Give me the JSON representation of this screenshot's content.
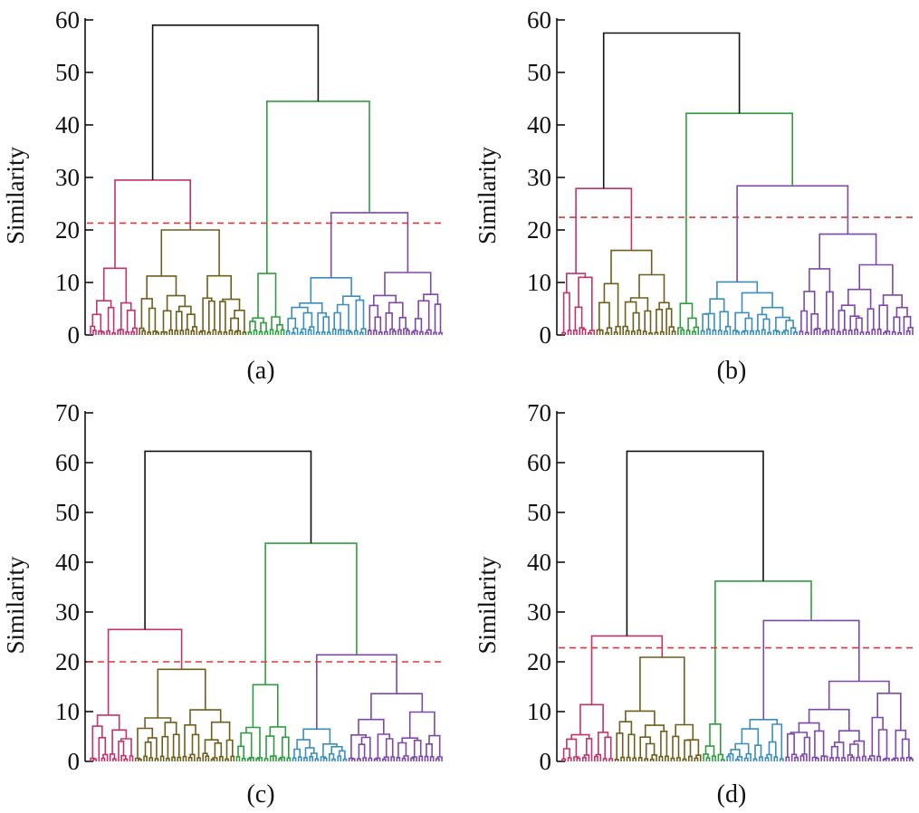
{
  "chart_data": [
    {
      "type": "dendrogram",
      "panel_label": "(a)",
      "ylabel": "Similarity",
      "ylim": [
        0,
        60
      ],
      "yticks": [
        0,
        10,
        20,
        30,
        40,
        50,
        60
      ],
      "cut_threshold": 21.3,
      "root_height": 59,
      "clusters": [
        {
          "name": "",
          "color": "#c2336b",
          "merge_height": 12.7,
          "sub_heights": [
            5.1,
            7.5,
            2.4,
            3.0,
            1.5,
            2.0,
            1.2
          ],
          "leaves": 18
        },
        {
          "name": "",
          "color": "#6e5f1c",
          "merge_height": 20.0,
          "sub_heights": [
            7.7,
            11.3,
            5.6,
            6.0,
            3.0,
            2.2,
            2.6
          ],
          "leaves": 40
        },
        {
          "name": "",
          "color": "#2f9d3f",
          "merge_height": 11.7,
          "sub_heights": [
            3.6,
            4.2,
            2.0,
            1.5
          ],
          "leaves": 14
        },
        {
          "name": "",
          "color": "#3b8ebc",
          "merge_height": 10.9,
          "sub_heights": [
            6.5,
            6.8,
            5.3,
            3.5,
            2.2,
            1.8
          ],
          "leaves": 30
        },
        {
          "name": "",
          "color": "#7d49a8",
          "merge_height": 11.9,
          "sub_heights": [
            7.4,
            6.0,
            4.0,
            3.4,
            2.1,
            1.6
          ],
          "leaves": 28
        }
      ],
      "upper_links": [
        {
          "children": [
            0,
            1
          ],
          "height": 29.5
        },
        {
          "children": [
            3,
            4
          ],
          "height": 23.3
        },
        {
          "children": [
            2,
            "34"
          ],
          "height": 44.5
        },
        {
          "children": [
            "01",
            "234"
          ],
          "height": 59
        }
      ]
    },
    {
      "type": "dendrogram",
      "panel_label": "(b)",
      "ylabel": "Similarity",
      "ylim": [
        0,
        60
      ],
      "yticks": [
        0,
        10,
        20,
        30,
        40,
        50,
        60
      ],
      "cut_threshold": 22.4,
      "root_height": 57.5,
      "clusters": [
        {
          "name": "",
          "color": "#c2336b",
          "merge_height": 11.7,
          "sub_heights": [
            10.5,
            5.5,
            3.7,
            2.0
          ],
          "leaves": 12
        },
        {
          "name": "",
          "color": "#6e5f1c",
          "merge_height": 16.1,
          "sub_heights": [
            11.0,
            6.8,
            6.0,
            4.5,
            3.2,
            2.5
          ],
          "leaves": 28
        },
        {
          "name": "",
          "color": "#2f9d3f",
          "merge_height": 6.0,
          "sub_heights": [
            4.2,
            2.0
          ],
          "leaves": 8
        },
        {
          "name": "",
          "color": "#3b8ebc",
          "merge_height": 10.1,
          "sub_heights": [
            8.7,
            5.0,
            4.0,
            3.5,
            2.5,
            1.7
          ],
          "leaves": 34
        },
        {
          "name": "",
          "color": "#7d49a8",
          "merge_height": 19.2,
          "sub_heights": [
            13.8,
            8.8,
            5.2,
            4.3,
            3.0,
            2.0
          ],
          "leaves": 40
        }
      ],
      "upper_links": [
        {
          "children": [
            0,
            1
          ],
          "height": 27.9
        },
        {
          "children": [
            3,
            4
          ],
          "height": 28.4
        },
        {
          "children": [
            2,
            "34"
          ],
          "height": 42.2
        },
        {
          "children": [
            "01",
            "234"
          ],
          "height": 57.5
        }
      ]
    },
    {
      "type": "dendrogram",
      "panel_label": "(c)",
      "ylabel": "Similarity",
      "ylim": [
        0,
        70
      ],
      "yticks": [
        0,
        10,
        20,
        30,
        40,
        50,
        60,
        70
      ],
      "cut_threshold": 20.0,
      "root_height": 62.3,
      "clusters": [
        {
          "name": "",
          "color": "#c2336b",
          "merge_height": 9.3,
          "sub_heights": [
            7.0,
            5.2,
            3.8,
            2.3,
            1.5
          ],
          "leaves": 16
        },
        {
          "name": "",
          "color": "#6e5f1c",
          "merge_height": 18.5,
          "sub_heights": [
            11.1,
            7.3,
            5.0,
            4.2,
            3.0,
            2.0
          ],
          "leaves": 36
        },
        {
          "name": "",
          "color": "#2f9d3f",
          "merge_height": 15.4,
          "sub_heights": [
            7.5,
            5.5,
            3.0,
            2.0
          ],
          "leaves": 20
        },
        {
          "name": "",
          "color": "#3b8ebc",
          "merge_height": 6.5,
          "sub_heights": [
            4.2,
            3.0,
            2.0,
            1.5
          ],
          "leaves": 20
        },
        {
          "name": "",
          "color": "#7d49a8",
          "merge_height": 13.6,
          "sub_heights": [
            10.4,
            5.6,
            4.5,
            3.2,
            2.2
          ],
          "leaves": 34
        }
      ],
      "upper_links": [
        {
          "children": [
            0,
            1
          ],
          "height": 26.5
        },
        {
          "children": [
            3,
            4
          ],
          "height": 21.4
        },
        {
          "children": [
            2,
            "34"
          ],
          "height": 43.8
        },
        {
          "children": [
            "01",
            "234"
          ],
          "height": 62.3
        }
      ]
    },
    {
      "type": "dendrogram",
      "panel_label": "(d)",
      "ylabel": "Similarity",
      "ylim": [
        0,
        70
      ],
      "yticks": [
        0,
        10,
        20,
        30,
        40,
        50,
        60,
        70
      ],
      "cut_threshold": 22.8,
      "root_height": 62.3,
      "clusters": [
        {
          "name": "",
          "color": "#c2336b",
          "merge_height": 11.4,
          "sub_heights": [
            5.7,
            5.9,
            3.2,
            2.2,
            1.6
          ],
          "leaves": 18
        },
        {
          "name": "",
          "color": "#6e5f1c",
          "merge_height": 20.9,
          "sub_heights": [
            9.8,
            8.7,
            5.5,
            4.0,
            3.0,
            2.0
          ],
          "leaves": 30
        },
        {
          "name": "",
          "color": "#2f9d3f",
          "merge_height": 7.5,
          "sub_heights": [
            3.8,
            2.0
          ],
          "leaves": 8
        },
        {
          "name": "",
          "color": "#3b8ebc",
          "merge_height": 8.4,
          "sub_heights": [
            7.0,
            4.3,
            3.0,
            2.0
          ],
          "leaves": 20
        },
        {
          "name": "",
          "color": "#7d49a8",
          "merge_height": 16.1,
          "sub_heights": [
            15.9,
            7.0,
            6.0,
            8.2,
            3.5,
            2.0
          ],
          "leaves": 44
        }
      ],
      "upper_links": [
        {
          "children": [
            0,
            1
          ],
          "height": 25.2
        },
        {
          "children": [
            3,
            4
          ],
          "height": 28.3
        },
        {
          "children": [
            2,
            "34"
          ],
          "height": 36.2
        },
        {
          "children": [
            "01",
            "234"
          ],
          "height": 62.3
        }
      ]
    }
  ]
}
